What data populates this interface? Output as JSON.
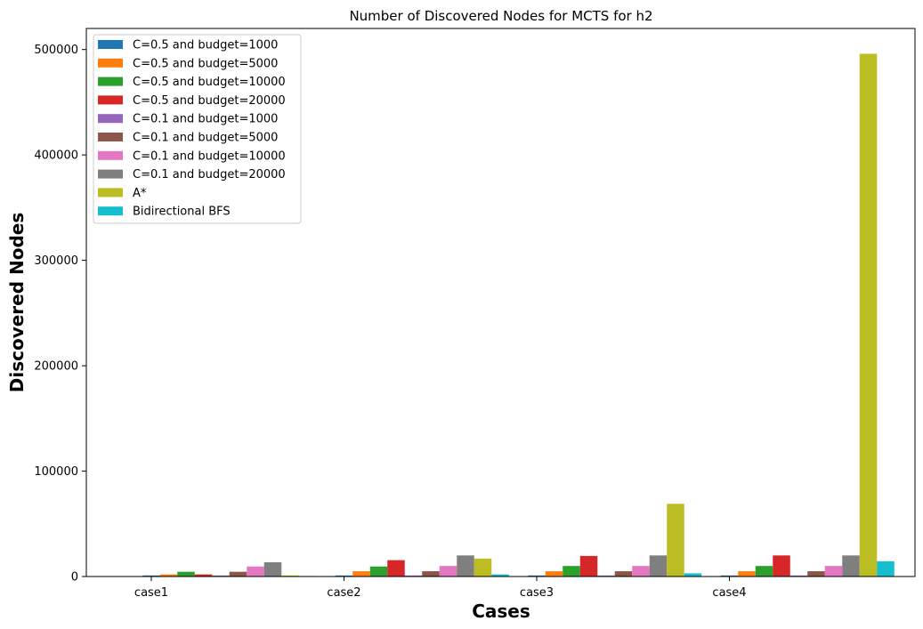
{
  "chart_data": {
    "type": "bar",
    "title": "Number of Discovered Nodes for MCTS for h2",
    "xlabel": "Cases",
    "ylabel": "Discovered Nodes",
    "categories": [
      "case1",
      "case2",
      "case3",
      "case4"
    ],
    "ylim": [
      0,
      520000
    ],
    "yticks": [
      0,
      100000,
      200000,
      300000,
      400000,
      500000
    ],
    "ytick_labels": [
      "0",
      "100000",
      "200000",
      "300000",
      "400000",
      "500000"
    ],
    "grid": false,
    "legend_position": "top-left",
    "series": [
      {
        "name": "C=0.5 and budget=1000",
        "color": "#1f77b4",
        "values": [
          1000,
          1000,
          1000,
          1000
        ]
      },
      {
        "name": "C=0.5 and budget=5000",
        "color": "#ff7f0e",
        "values": [
          2000,
          5000,
          5000,
          5000
        ]
      },
      {
        "name": "C=0.5 and budget=10000",
        "color": "#2ca02c",
        "values": [
          4500,
          9500,
          10000,
          10000
        ]
      },
      {
        "name": "C=0.5 and budget=20000",
        "color": "#d62728",
        "values": [
          2000,
          15500,
          19500,
          20000
        ]
      },
      {
        "name": "C=0.1 and budget=1000",
        "color": "#9467bd",
        "values": [
          1000,
          1000,
          1000,
          1000
        ]
      },
      {
        "name": "C=0.1 and budget=5000",
        "color": "#8c564b",
        "values": [
          4500,
          5000,
          5000,
          5000
        ]
      },
      {
        "name": "C=0.1 and budget=10000",
        "color": "#e377c2",
        "values": [
          9500,
          10000,
          10000,
          10000
        ]
      },
      {
        "name": "C=0.1 and budget=20000",
        "color": "#7f7f7f",
        "values": [
          13500,
          20000,
          20000,
          20000
        ]
      },
      {
        "name": "A*",
        "color": "#bcbd22",
        "values": [
          1000,
          17000,
          69000,
          496000
        ]
      },
      {
        "name": "Bidirectional BFS",
        "color": "#17becf",
        "values": [
          500,
          2000,
          3000,
          14500
        ]
      }
    ]
  }
}
